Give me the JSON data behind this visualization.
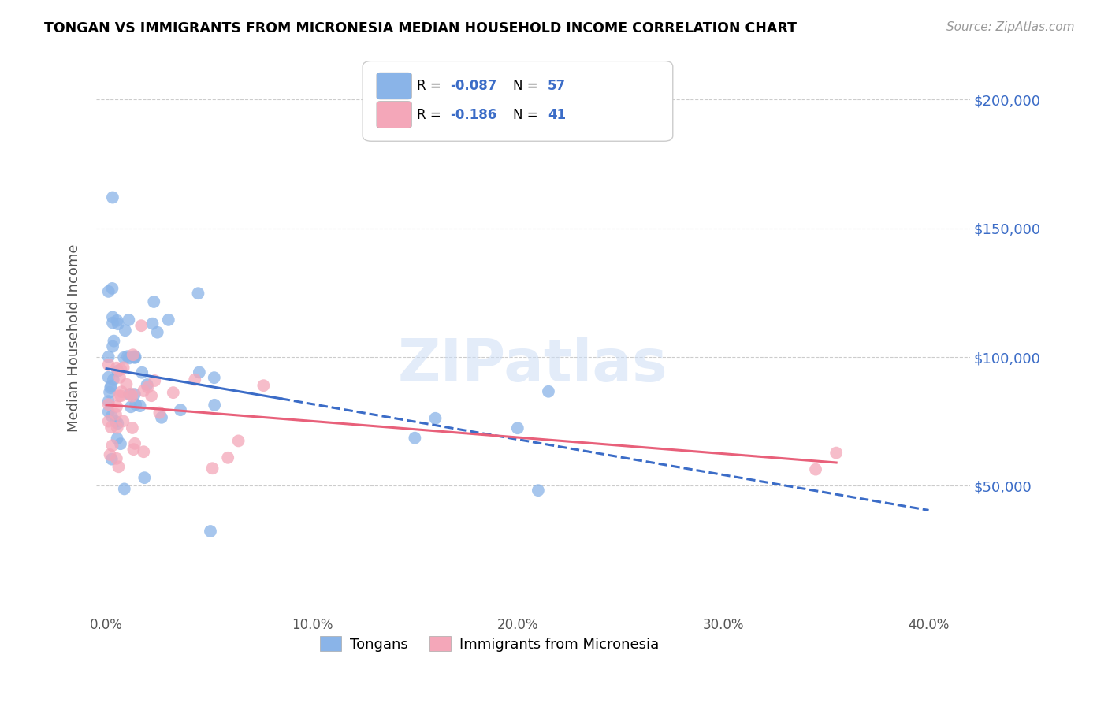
{
  "title": "TONGAN VS IMMIGRANTS FROM MICRONESIA MEDIAN HOUSEHOLD INCOME CORRELATION CHART",
  "source": "Source: ZipAtlas.com",
  "ylabel": "Median Household Income",
  "xlabel_ticks": [
    "0.0%",
    "10.0%",
    "20.0%",
    "30.0%",
    "40.0%"
  ],
  "xlabel_tick_vals": [
    0.0,
    0.1,
    0.2,
    0.3,
    0.4
  ],
  "ytick_labels": [
    "$50,000",
    "$100,000",
    "$150,000",
    "$200,000"
  ],
  "ytick_vals": [
    50000,
    100000,
    150000,
    200000
  ],
  "ylim": [
    0,
    215000
  ],
  "xlim": [
    -0.005,
    0.42
  ],
  "legend_labels": [
    "Tongans",
    "Immigrants from Micronesia"
  ],
  "R_blue": -0.087,
  "N_blue": 57,
  "R_pink": -0.186,
  "N_pink": 41,
  "blue_color": "#8ab4e8",
  "pink_color": "#f4a7b9",
  "blue_line_color": "#3b6cc7",
  "pink_line_color": "#e8607a",
  "watermark": "ZIPatlas"
}
